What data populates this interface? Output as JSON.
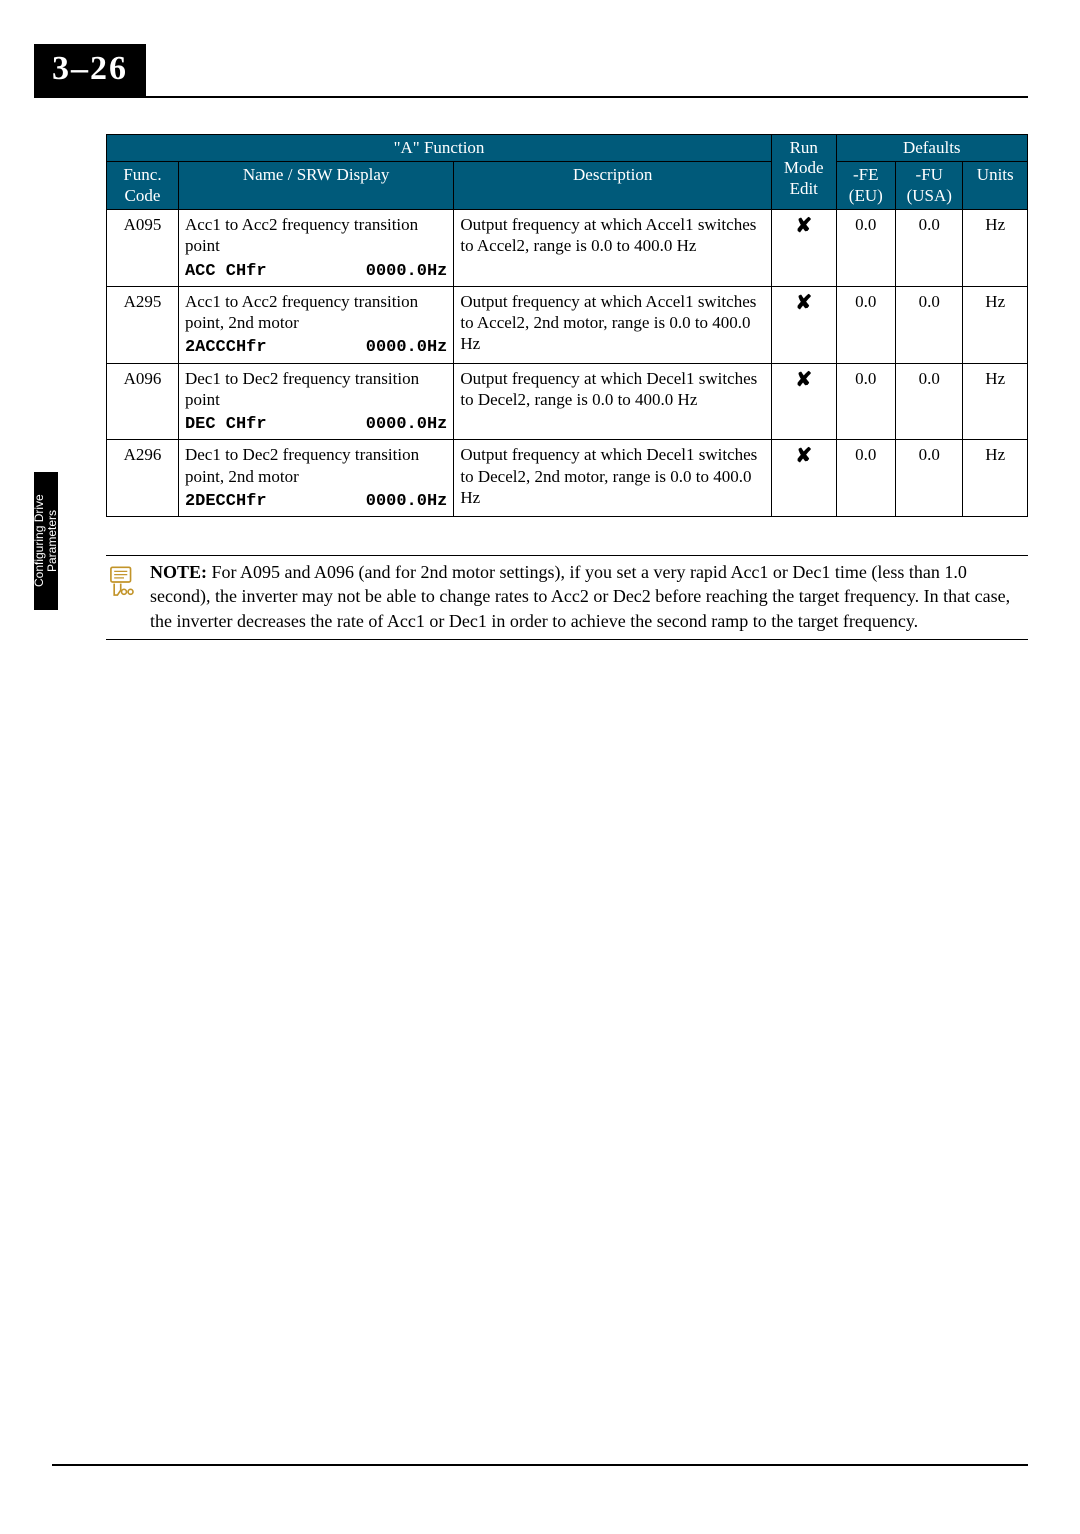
{
  "page": {
    "number": "3–26",
    "side_tab": "Configuring Drive\nParameters"
  },
  "table": {
    "header": {
      "group": "\"A\" Function",
      "func_code": "Func. Code",
      "name": "Name / SRW Display",
      "description": "Description",
      "run_mode": "Run Mode Edit",
      "defaults": "Defaults",
      "fe": "-FE (EU)",
      "fu": "-FU (USA)",
      "units": "Units"
    },
    "rows": [
      {
        "code": "A095",
        "name": "Acc1 to Acc2 frequency transition point",
        "srw_label": "ACC CHfr",
        "srw_value": "0000.0Hz",
        "desc": "Output frequency at which Accel1 switches to Accel2, range is 0.0 to 400.0 Hz",
        "run": "✘",
        "fe": "0.0",
        "fu": "0.0",
        "units": "Hz"
      },
      {
        "code": "A295",
        "name": "Acc1 to Acc2 frequency transition point, 2nd motor",
        "srw_label": "2ACCCHfr",
        "srw_value": "0000.0Hz",
        "desc": "Output frequency at which Accel1 switches to Accel2, 2nd motor, range is 0.0 to 400.0 Hz",
        "run": "✘",
        "fe": "0.0",
        "fu": "0.0",
        "units": "Hz"
      },
      {
        "code": "A096",
        "name": "Dec1 to Dec2 frequency transition point",
        "srw_label": "DEC CHfr",
        "srw_value": "0000.0Hz",
        "desc": "Output frequency at which Decel1 switches to Decel2, range is 0.0 to 400.0 Hz",
        "run": "✘",
        "fe": "0.0",
        "fu": "0.0",
        "units": "Hz"
      },
      {
        "code": "A296",
        "name": "Dec1 to Dec2 frequency transition point, 2nd motor",
        "srw_label": "2DECCHfr",
        "srw_value": "0000.0Hz",
        "desc": "Output frequency at which Decel1 switches to Decel2, 2nd motor, range is 0.0 to 400.0 Hz",
        "run": "✘",
        "fe": "0.0",
        "fu": "0.0",
        "units": "Hz"
      }
    ]
  },
  "note": {
    "label": "NOTE:",
    "body": "For A095 and A096 (and for 2nd motor settings), if you set a very rapid Acc1 or Dec1 time (less than 1.0 second), the inverter may not be able to change rates to Acc2 or Dec2 before reaching the target frequency. In that case, the inverter decreases the rate of Acc1 or Dec1 in order to achieve the second ramp to the target frequency."
  },
  "colors": {
    "header_bg": "#005a7a",
    "text": "#000000",
    "bg": "#ffffff"
  }
}
